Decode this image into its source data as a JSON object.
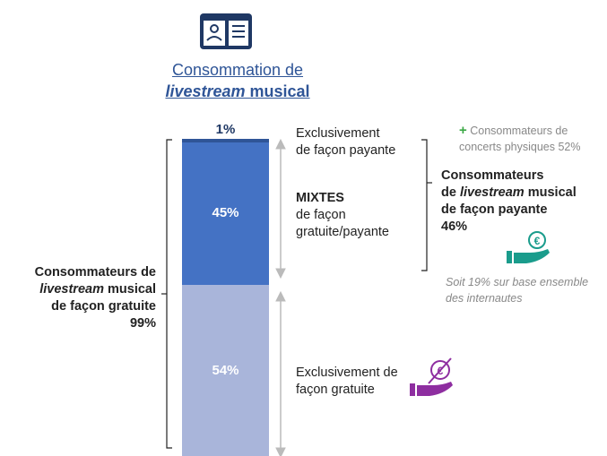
{
  "chart_data": {
    "type": "stacked_bar",
    "title": {
      "line1": "Consommation de",
      "emphasis": "livestream",
      "rest": "musical"
    },
    "ylim": [
      0,
      100
    ],
    "series": [
      {
        "name": "Exclusivement de",
        "detail": "façon gratuite",
        "color": "#a9b5da",
        "values": [
          54
        ],
        "value_labels": [
          "54%"
        ]
      },
      {
        "name": "MIXTES",
        "detail": "de façon gratuite/payante",
        "color": "#4472c4",
        "values": [
          45
        ],
        "value_labels": [
          "45%"
        ]
      },
      {
        "name": "Exclusivement",
        "detail": "de façon payante",
        "color": "#2f5597",
        "values": [
          1
        ],
        "value_labels": [
          "1%"
        ]
      }
    ],
    "group_free": {
      "line1": "Consommateurs de",
      "emphasis": "livestream",
      "rest": "musical",
      "line3": "de façon gratuite",
      "total": "99%"
    },
    "group_paid": {
      "line1": "Consommateurs",
      "prefix": "de",
      "emphasis": "livestream",
      "rest": "musical",
      "line3": "de façon payante",
      "total": "46%"
    },
    "concerts_note": {
      "sign": "+",
      "text": "Consommateurs de concerts physiques 52%"
    },
    "base_note": "Soit 19% sur base ensemble des internautes"
  }
}
